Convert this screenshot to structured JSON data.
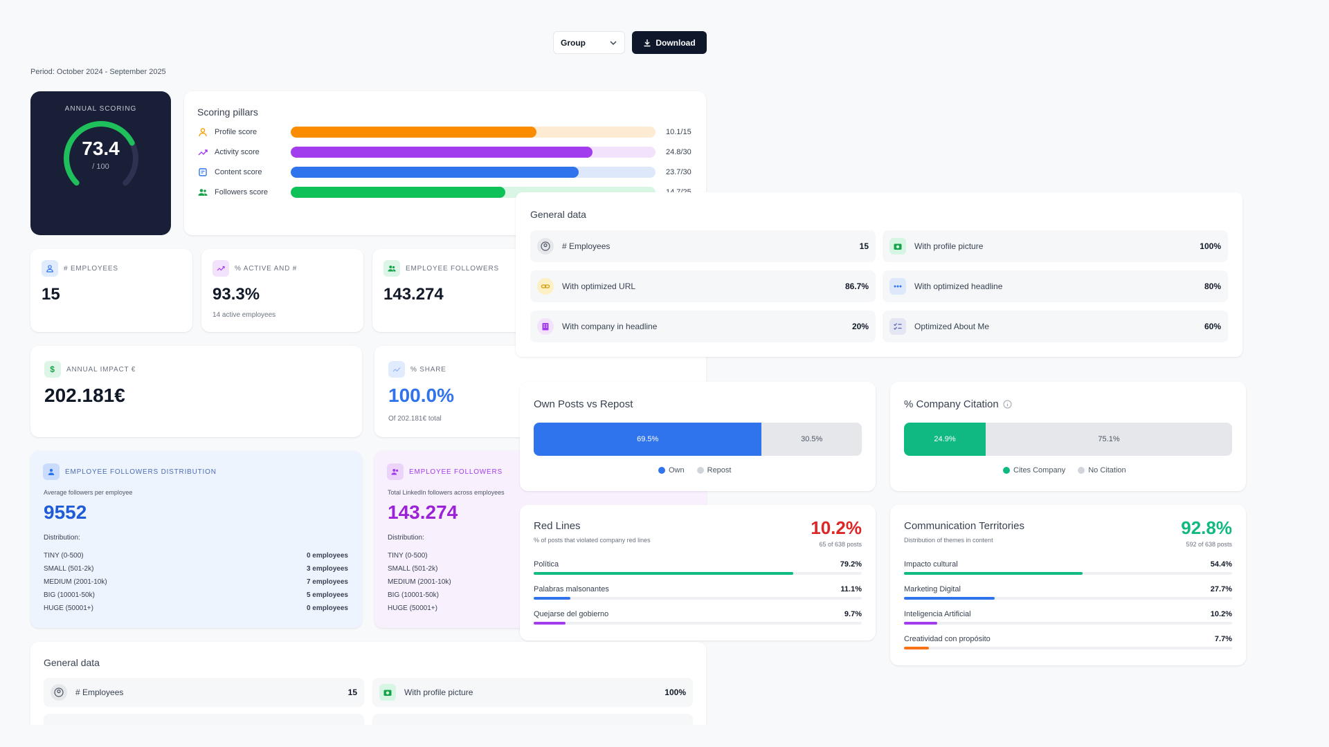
{
  "toolbar": {
    "select_value": "Group",
    "download_label": "Download"
  },
  "period": "Period: October 2024 - September 2025",
  "annual": {
    "label": "ANNUAL SCORING",
    "value": "73.4",
    "denominator": "/ 100",
    "fraction": 0.734
  },
  "pillars": {
    "title": "Scoring pillars",
    "items": [
      {
        "name": "Profile score",
        "score": "10.1/15",
        "fraction": 0.673,
        "color": "#fb8c00",
        "track": "#fdebd3"
      },
      {
        "name": "Activity score",
        "score": "24.8/30",
        "fraction": 0.827,
        "color": "#a23ded",
        "track": "#f3e2fb"
      },
      {
        "name": "Content score",
        "score": "23.7/30",
        "fraction": 0.79,
        "color": "#2f74ec",
        "track": "#dde9fb"
      },
      {
        "name": "Followers score",
        "score": "14.7/25",
        "fraction": 0.588,
        "color": "#0fc257",
        "track": "#d9f5e4"
      }
    ]
  },
  "stats": {
    "employees": {
      "label": "# EMPLOYEES",
      "value": "15"
    },
    "active": {
      "label": "% ACTIVE AND #",
      "value": "93.3%",
      "sub": "14 active employees"
    },
    "followers": {
      "label": "EMPLOYEE FOLLOWERS",
      "value": "143.274"
    },
    "impact": {
      "label": "ANNUAL IMPACT €",
      "value": "202.181€"
    },
    "share": {
      "label": "% SHARE",
      "value": "100.0%",
      "sub": "Of 202.181€ total"
    }
  },
  "dist_blue": {
    "label": "EMPLOYEE FOLLOWERS DISTRIBUTION",
    "desc": "Average followers per employee",
    "value": "9552",
    "dist_label": "Distribution:",
    "rows": [
      {
        "name": "TINY (0-500)",
        "count": "0 employees"
      },
      {
        "name": "SMALL (501-2k)",
        "count": "3 employees"
      },
      {
        "name": "MEDIUM (2001-10k)",
        "count": "7 employees"
      },
      {
        "name": "BIG (10001-50k)",
        "count": "5 employees"
      },
      {
        "name": "HUGE (50001+)",
        "count": "0 employees"
      }
    ]
  },
  "dist_purple": {
    "label": "EMPLOYEE FOLLOWERS",
    "desc": "Total LinkedIn followers across employees",
    "value": "143.274",
    "dist_label": "Distribution:",
    "rows": [
      {
        "name": "TINY (0-500)"
      },
      {
        "name": "SMALL (501-2k)"
      },
      {
        "name": "MEDIUM (2001-10k)"
      },
      {
        "name": "BIG (10001-50k)"
      },
      {
        "name": "HUGE (50001+)"
      }
    ]
  },
  "general": {
    "title": "General data",
    "items": [
      {
        "label": "# Employees",
        "value": "15"
      },
      {
        "label": "With profile picture",
        "value": "100%"
      },
      {
        "label": "With optimized URL",
        "value": "86.7%"
      },
      {
        "label": "With optimized headline",
        "value": "80%"
      },
      {
        "label": "With company in headline",
        "value": "20%"
      },
      {
        "label": "Optimized About Me",
        "value": "60%"
      }
    ]
  },
  "general_bottom": {
    "title": "General data",
    "items": [
      {
        "label": "# Employees",
        "value": "15"
      },
      {
        "label": "With profile picture",
        "value": "100%"
      }
    ]
  },
  "own_posts": {
    "title": "Own Posts vs Repost",
    "own": "69.5%",
    "repost": "30.5%",
    "own_fraction": 0.695,
    "legend_own": "Own",
    "legend_repost": "Repost"
  },
  "citation": {
    "title": "% Company Citation",
    "cites": "24.9%",
    "none": "75.1%",
    "cites_fraction": 0.249,
    "legend_cites": "Cites Company",
    "legend_none": "No Citation"
  },
  "red_lines": {
    "title": "Red Lines",
    "desc": "% of posts that violated company red lines",
    "pct": "10.2%",
    "pct_sub": "65 of 638 posts",
    "rows": [
      {
        "name": "Política",
        "value": "79.2%",
        "fraction": 0.792,
        "color": "#10b981"
      },
      {
        "name": "Palabras malsonantes",
        "value": "11.1%",
        "fraction": 0.111,
        "color": "#2f74ec"
      },
      {
        "name": "Quejarse del gobierno",
        "value": "9.7%",
        "fraction": 0.097,
        "color": "#a23ded"
      }
    ]
  },
  "territories": {
    "title": "Communication Territories",
    "desc": "Distribution of themes in content",
    "pct": "92.8%",
    "pct_sub": "592 of 638 posts",
    "rows": [
      {
        "name": "Impacto cultural",
        "value": "54.4%",
        "fraction": 0.544,
        "color": "#10b981"
      },
      {
        "name": "Marketing Digital",
        "value": "27.7%",
        "fraction": 0.277,
        "color": "#2f74ec"
      },
      {
        "name": "Inteligencia Artificial",
        "value": "10.2%",
        "fraction": 0.102,
        "color": "#a23ded"
      },
      {
        "name": "Creatividad con propósito",
        "value": "7.7%",
        "fraction": 0.077,
        "color": "#f97316"
      }
    ]
  }
}
